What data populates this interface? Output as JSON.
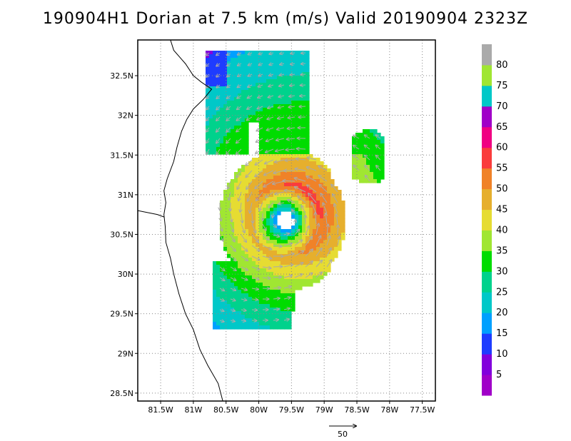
{
  "title": "190904H1 Dorian at 7.5 km (m/s) Valid 20190904 2323Z",
  "map": {
    "lon_range": [
      -81.85,
      -77.3
    ],
    "lat_range": [
      28.4,
      32.95
    ],
    "lon_ticks": [
      {
        "value": -81.5,
        "label": "81.5W"
      },
      {
        "value": -81.0,
        "label": "81W"
      },
      {
        "value": -80.5,
        "label": "80.5W"
      },
      {
        "value": -80.0,
        "label": "80W"
      },
      {
        "value": -79.5,
        "label": "79.5W"
      },
      {
        "value": -79.0,
        "label": "79W"
      },
      {
        "value": -78.5,
        "label": "78.5W"
      },
      {
        "value": -78.0,
        "label": "78W"
      },
      {
        "value": -77.5,
        "label": "77.5W"
      }
    ],
    "lat_ticks": [
      {
        "value": 28.5,
        "label": "28.5N"
      },
      {
        "value": 29.0,
        "label": "29N"
      },
      {
        "value": 29.5,
        "label": "29.5N"
      },
      {
        "value": 30.0,
        "label": "30N"
      },
      {
        "value": 30.5,
        "label": "30.5N"
      },
      {
        "value": 31.0,
        "label": "31N"
      },
      {
        "value": 31.5,
        "label": "31.5N"
      },
      {
        "value": 32.0,
        "label": "32N"
      },
      {
        "value": 32.5,
        "label": "32.5N"
      }
    ],
    "grid": "dotted",
    "storm_center": {
      "lon": -79.62,
      "lat": 30.7
    },
    "coastline": [
      [
        -81.35,
        32.95
      ],
      [
        -81.3,
        32.82
      ],
      [
        -81.12,
        32.65
      ],
      [
        -81.0,
        32.5
      ],
      [
        -80.88,
        32.42
      ],
      [
        -80.72,
        32.33
      ],
      [
        -80.85,
        32.2
      ],
      [
        -81.0,
        32.08
      ],
      [
        -81.1,
        31.95
      ],
      [
        -81.18,
        31.8
      ],
      [
        -81.25,
        31.6
      ],
      [
        -81.3,
        31.42
      ],
      [
        -81.4,
        31.2
      ],
      [
        -81.45,
        31.05
      ],
      [
        -81.42,
        30.9
      ],
      [
        -81.45,
        30.75
      ],
      [
        -81.43,
        30.6
      ],
      [
        -81.42,
        30.4
      ],
      [
        -81.35,
        30.2
      ],
      [
        -81.3,
        30.0
      ],
      [
        -81.22,
        29.75
      ],
      [
        -81.12,
        29.5
      ],
      [
        -81.0,
        29.3
      ],
      [
        -80.9,
        29.05
      ],
      [
        -80.78,
        28.85
      ],
      [
        -80.62,
        28.62
      ],
      [
        -80.55,
        28.4
      ]
    ],
    "state_border": [
      [
        -81.85,
        30.8
      ],
      [
        -81.55,
        30.75
      ],
      [
        -81.45,
        30.72
      ]
    ],
    "reference_vector": {
      "label": "50",
      "value": 50,
      "unit": "m/s"
    }
  },
  "colorbar": {
    "levels": [
      {
        "label": "",
        "color": "#a000c8"
      },
      {
        "label": "5",
        "color": "#8200dc"
      },
      {
        "label": "10",
        "color": "#1e3cff"
      },
      {
        "label": "15",
        "color": "#00a0ff"
      },
      {
        "label": "20",
        "color": "#00c8c8"
      },
      {
        "label": "25",
        "color": "#00d28c"
      },
      {
        "label": "30",
        "color": "#00dc00"
      },
      {
        "label": "35",
        "color": "#a0e632"
      },
      {
        "label": "40",
        "color": "#e6dc32"
      },
      {
        "label": "45",
        "color": "#e6af2d"
      },
      {
        "label": "50",
        "color": "#f08228"
      },
      {
        "label": "55",
        "color": "#fa3c3c"
      },
      {
        "label": "60",
        "color": "#f00082"
      },
      {
        "label": "65",
        "color": "#a000c8"
      },
      {
        "label": "70",
        "color": "#00c8c8"
      },
      {
        "label": "75",
        "color": "#a0e632"
      },
      {
        "label": "80",
        "color": "#aaaaaa"
      }
    ]
  }
}
